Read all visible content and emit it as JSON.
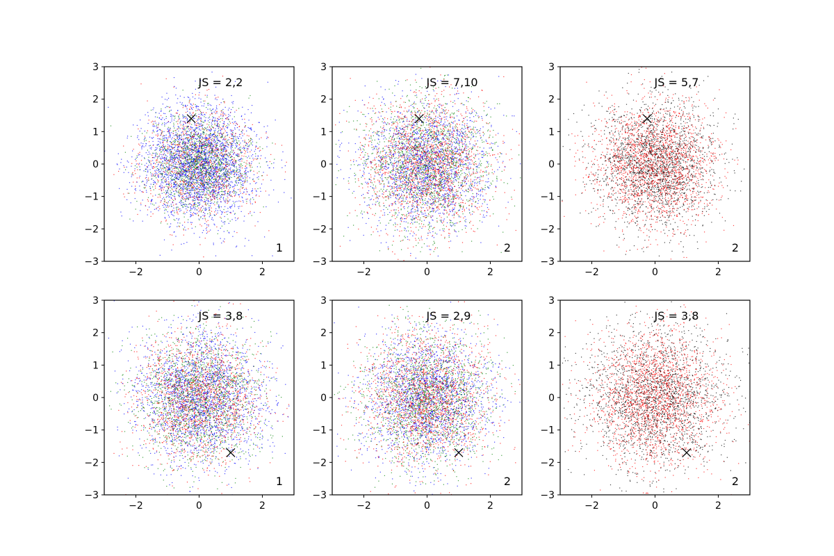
{
  "figure": {
    "layout": "2x3 grid of scatter subplots",
    "colors": {
      "red": "#ff0000",
      "green": "#008000",
      "blue": "#0000ff",
      "black": "#000000"
    }
  },
  "chart_data": [
    {
      "type": "scatter",
      "annotation": "JS = 2,2",
      "corner_label": "1",
      "xlim": [
        -3,
        3
      ],
      "ylim": [
        -3,
        3
      ],
      "xticks": [
        -2,
        0,
        2
      ],
      "yticks": [
        -3,
        -2,
        -1,
        0,
        1,
        2,
        3
      ],
      "grid": false,
      "series": [
        {
          "color": "#0000ff",
          "distribution": "2D standard normal cloud centered at (0,0)",
          "sd": 0.9,
          "n": 2600
        },
        {
          "color": "#ff0000",
          "distribution": "2D standard normal cloud centered at (0,0)",
          "sd": 0.9,
          "n": 1100
        },
        {
          "color": "#008000",
          "distribution": "2D standard normal cloud centered at (0,0)",
          "sd": 0.75,
          "n": 1400
        }
      ],
      "marker": {
        "symbol": "x",
        "x": -0.25,
        "y": 1.4
      }
    },
    {
      "type": "scatter",
      "annotation": "JS = 7,10",
      "corner_label": "2",
      "xlim": [
        -3,
        3
      ],
      "ylim": [
        -3,
        3
      ],
      "xticks": [
        -2,
        0,
        2
      ],
      "yticks": [
        -3,
        -2,
        -1,
        0,
        1,
        2,
        3
      ],
      "grid": false,
      "series": [
        {
          "color": "#0000ff",
          "distribution": "2D standard normal cloud centered at (0,0)",
          "sd": 1.0,
          "n": 1800
        },
        {
          "color": "#ff0000",
          "distribution": "2D standard normal cloud centered at (0,0)",
          "sd": 1.0,
          "n": 1800
        },
        {
          "color": "#008000",
          "distribution": "2D standard normal cloud centered at (0,0)",
          "sd": 1.0,
          "n": 1600
        }
      ],
      "marker": {
        "symbol": "x",
        "x": -0.25,
        "y": 1.4
      }
    },
    {
      "type": "scatter",
      "annotation": "JS = 5,7",
      "corner_label": "2",
      "xlim": [
        -3,
        3
      ],
      "ylim": [
        -3,
        3
      ],
      "xticks": [
        -2,
        0,
        2
      ],
      "yticks": [
        -3,
        -2,
        -1,
        0,
        1,
        2,
        3
      ],
      "grid": false,
      "series": [
        {
          "color": "#000000",
          "distribution": "2D standard normal cloud centered at (0,0)",
          "sd": 0.95,
          "n": 2000
        },
        {
          "color": "#ff0000",
          "distribution": "2D standard normal cloud centered at (0,0)",
          "sd": 0.95,
          "n": 2000
        }
      ],
      "marker": {
        "symbol": "x",
        "x": -0.25,
        "y": 1.4
      }
    },
    {
      "type": "scatter",
      "annotation": "JS = 3,8",
      "corner_label": "1",
      "xlim": [
        -3,
        3
      ],
      "ylim": [
        -3,
        3
      ],
      "xticks": [
        -2,
        0,
        2
      ],
      "yticks": [
        -3,
        -2,
        -1,
        0,
        1,
        2,
        3
      ],
      "grid": false,
      "series": [
        {
          "color": "#0000ff",
          "distribution": "2D standard normal cloud centered at (0,0)",
          "sd": 1.0,
          "n": 2000
        },
        {
          "color": "#ff0000",
          "distribution": "2D standard normal cloud centered at (0,0)",
          "sd": 1.0,
          "n": 1600
        },
        {
          "color": "#008000",
          "distribution": "2D standard normal cloud centered at (0,0)",
          "sd": 1.0,
          "n": 1600
        }
      ],
      "marker": {
        "symbol": "x",
        "x": 1.0,
        "y": -1.7
      }
    },
    {
      "type": "scatter",
      "annotation": "JS = 2,9",
      "corner_label": "2",
      "xlim": [
        -3,
        3
      ],
      "ylim": [
        -3,
        3
      ],
      "xticks": [
        -2,
        0,
        2
      ],
      "yticks": [
        -3,
        -2,
        -1,
        0,
        1,
        2,
        3
      ],
      "grid": false,
      "series": [
        {
          "color": "#0000ff",
          "distribution": "2D standard normal cloud centered at (0,0)",
          "sd": 1.0,
          "n": 1800
        },
        {
          "color": "#ff0000",
          "distribution": "2D standard normal cloud centered at (0,0)",
          "sd": 1.0,
          "n": 1800
        },
        {
          "color": "#008000",
          "distribution": "2D standard normal cloud centered at (0,0)",
          "sd": 1.0,
          "n": 1600
        }
      ],
      "marker": {
        "symbol": "x",
        "x": 1.0,
        "y": -1.7
      }
    },
    {
      "type": "scatter",
      "annotation": "JS = 3,8",
      "corner_label": "2",
      "xlim": [
        -3,
        3
      ],
      "ylim": [
        -3,
        3
      ],
      "xticks": [
        -2,
        0,
        2
      ],
      "yticks": [
        -3,
        -2,
        -1,
        0,
        1,
        2,
        3
      ],
      "grid": false,
      "series": [
        {
          "color": "#000000",
          "distribution": "2D standard normal cloud centered at (0,0)",
          "sd": 1.1,
          "n": 2000
        },
        {
          "color": "#ff0000",
          "distribution": "2D standard normal cloud centered at (0,0)",
          "sd": 1.0,
          "n": 2000
        }
      ],
      "marker": {
        "symbol": "x",
        "x": 1.0,
        "y": -1.7
      }
    }
  ]
}
